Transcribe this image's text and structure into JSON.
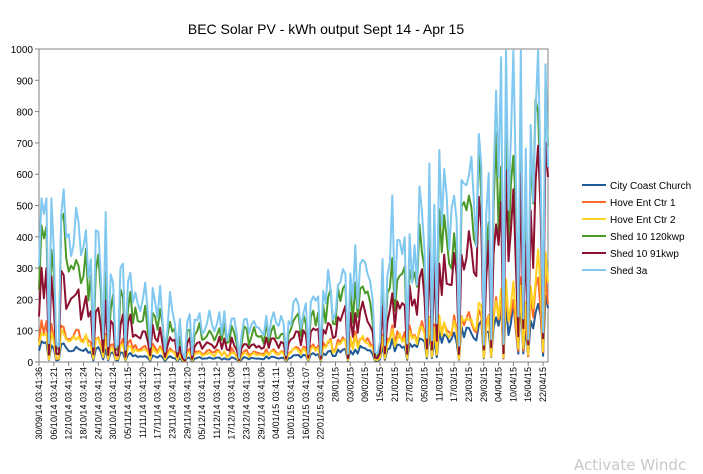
{
  "chart_data": {
    "type": "line",
    "title": "BEC Solar PV - kWh output Sept 14 - Apr 15",
    "xlabel": "",
    "ylabel": "",
    "ylim": [
      0,
      1000
    ],
    "yticks": [
      0,
      100,
      200,
      300,
      400,
      500,
      600,
      700,
      800,
      900,
      1000
    ],
    "grid": true,
    "legend_position": "right",
    "x_tick_labels": [
      "30/09/14 03:41:36",
      "06/10/14 03:41:21",
      "12/10/14 03:41:31",
      "18/10/14 03:41:24",
      "24/10/14 03:41:27",
      "30/10/14 03:41:24",
      "05/11/14 03:41:15",
      "11/11/14 03:41:20",
      "17/11/14 03:41:17",
      "23/11/14 03:41:19",
      "29/11/14 03:41:20",
      "05/12/14 03:41:13",
      "11/12/14 03:41:12",
      "17/12/14 03:41:08",
      "23/12/14 03:41:13",
      "29/12/14 03:41:06",
      "04/01/15 03:41:11",
      "10/01/15 03:41:05",
      "16/01/15 03:41:07",
      "22/01/15 03:41:02",
      "28/01/15",
      "03/02/15",
      "09/02/15",
      "15/02/15",
      "21/02/15",
      "27/02/15",
      "05/03/15",
      "11/03/15",
      "17/03/15",
      "23/03/15",
      "29/03/15",
      "04/04/15",
      "10/04/15",
      "16/04/15",
      "22/04/15"
    ],
    "x_tick_days": [
      0,
      6,
      12,
      18,
      24,
      30,
      36,
      42,
      48,
      54,
      60,
      66,
      72,
      78,
      84,
      90,
      96,
      102,
      108,
      114,
      120,
      126,
      132,
      138,
      144,
      150,
      156,
      162,
      168,
      174,
      180,
      186,
      192,
      198,
      204
    ],
    "series": [
      {
        "name": "City Coast Church",
        "color": "#1f5a96",
        "anchors_day": [
          0,
          10,
          20,
          30,
          40,
          50,
          60,
          70,
          80,
          90,
          100,
          110,
          118,
          128,
          140,
          150,
          160,
          170,
          180,
          190,
          200,
          206
        ],
        "anchors_value": [
          50,
          40,
          35,
          30,
          20,
          15,
          12,
          10,
          10,
          12,
          15,
          20,
          25,
          30,
          45,
          55,
          70,
          85,
          100,
          120,
          150,
          165
        ]
      },
      {
        "name": "Hove Ent Ctr 1",
        "color": "#ff6a2a",
        "anchors_day": [
          0,
          10,
          20,
          30,
          40,
          50,
          60,
          70,
          80,
          90,
          100,
          110,
          118,
          128,
          140,
          150,
          160,
          170,
          180,
          190,
          200,
          206
        ],
        "anchors_value": [
          90,
          80,
          70,
          60,
          45,
          35,
          30,
          28,
          28,
          30,
          35,
          40,
          50,
          60,
          75,
          90,
          100,
          115,
          130,
          150,
          190,
          220
        ]
      },
      {
        "name": "Hove Ent Ctr 2",
        "color": "#ffd21f",
        "anchors_day": [
          0,
          10,
          20,
          30,
          40,
          50,
          60,
          70,
          80,
          90,
          100,
          110,
          118,
          128,
          140,
          150,
          160,
          170,
          180,
          190,
          200,
          206
        ],
        "anchors_value": [
          75,
          70,
          60,
          50,
          40,
          30,
          25,
          22,
          22,
          25,
          30,
          35,
          45,
          55,
          70,
          85,
          100,
          115,
          140,
          170,
          220,
          280
        ]
      },
      {
        "name": "Shed 10 120kwp",
        "color": "#4a9a2a",
        "anchors_day": [
          0,
          10,
          20,
          30,
          40,
          50,
          60,
          70,
          80,
          90,
          100,
          110,
          118,
          128,
          140,
          150,
          160,
          170,
          180,
          190,
          200,
          206
        ],
        "anchors_value": [
          320,
          290,
          260,
          200,
          150,
          110,
          90,
          80,
          80,
          85,
          100,
          120,
          150,
          180,
          230,
          290,
          360,
          420,
          480,
          540,
          620,
          700
        ]
      },
      {
        "name": "Shed 10 91kwp",
        "color": "#8c1030",
        "anchors_day": [
          0,
          10,
          20,
          30,
          40,
          50,
          60,
          70,
          80,
          90,
          100,
          110,
          118,
          128,
          140,
          150,
          160,
          170,
          180,
          190,
          200,
          206
        ],
        "anchors_value": [
          200,
          180,
          160,
          120,
          90,
          70,
          55,
          50,
          50,
          55,
          65,
          80,
          100,
          120,
          160,
          200,
          260,
          300,
          340,
          390,
          470,
          560
        ]
      },
      {
        "name": "Shed 3a",
        "color": "#80c8f0",
        "anchors_day": [
          0,
          10,
          20,
          30,
          40,
          50,
          60,
          70,
          80,
          90,
          100,
          110,
          118,
          128,
          140,
          150,
          160,
          170,
          180,
          190,
          200,
          206
        ],
        "anchors_value": [
          420,
          380,
          340,
          270,
          200,
          150,
          120,
          110,
          110,
          115,
          135,
          160,
          190,
          230,
          300,
          380,
          460,
          530,
          590,
          660,
          760,
          740
        ]
      }
    ]
  },
  "watermark_text": "Activate Windc"
}
